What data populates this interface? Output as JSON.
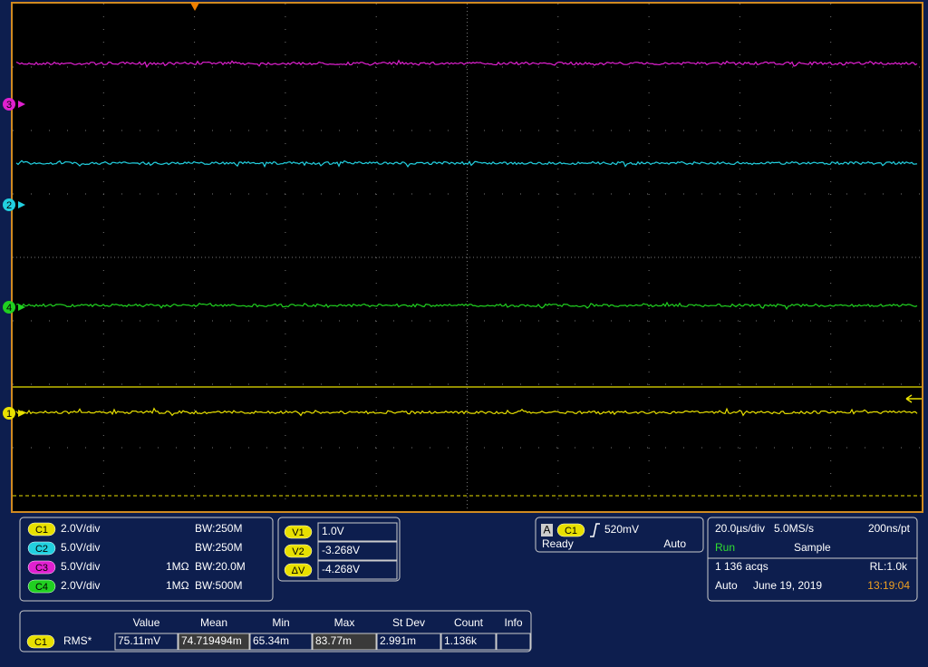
{
  "channels": [
    {
      "label": "C1",
      "color": "#e8e000",
      "scale": "2.0V/div",
      "bandwidth": "BW:250M"
    },
    {
      "label": "C2",
      "color": "#22d0e0",
      "scale": "5.0V/div",
      "bandwidth": "BW:250M"
    },
    {
      "label": "C3",
      "color": "#e020d0",
      "scale": "5.0V/div",
      "impedance": "1MΩ",
      "bandwidth": "BW:20.0M"
    },
    {
      "label": "C4",
      "color": "#20d020",
      "scale": "2.0V/div",
      "impedance": "1MΩ",
      "bandwidth": "BW:500M"
    }
  ],
  "screen_markers": [
    "3",
    "2",
    "4",
    "1"
  ],
  "cursors": [
    {
      "label": "V1",
      "value": "1.0V"
    },
    {
      "label": "V2",
      "value": "-3.268V"
    },
    {
      "label": "ΔV",
      "value": "-4.268V"
    }
  ],
  "trigger": {
    "source": "A",
    "channel": "C1",
    "level": "520mV",
    "state": "Ready",
    "mode": "Auto"
  },
  "timebase": {
    "scale": "20.0µs/div",
    "sample_rate": "5.0MS/s",
    "resolution": "200ns/pt",
    "run_state": "Run",
    "acquisition_mode": "Sample",
    "acquisitions": "1 136 acqs",
    "record_length": "RL:1.0k",
    "trigger_mode": "Auto",
    "date": "June 19, 2019",
    "time": "13:19:04"
  },
  "measurements": {
    "headers": [
      "Value",
      "Mean",
      "Min",
      "Max",
      "St Dev",
      "Count",
      "Info"
    ],
    "rows": [
      {
        "channel": "C1",
        "type": "RMS*",
        "values": [
          "75.11mV",
          "74.719494m",
          "65.34m",
          "83.77m",
          "2.991m",
          "1.136k"
        ]
      }
    ]
  }
}
